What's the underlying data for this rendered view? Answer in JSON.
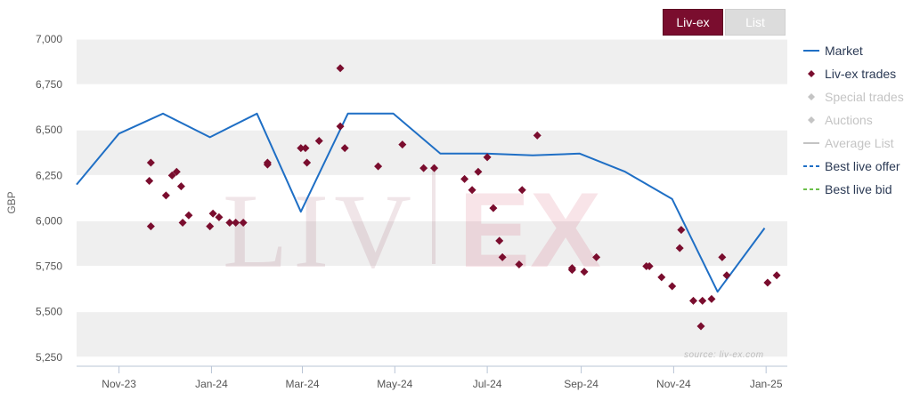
{
  "tabs": {
    "active": "Liv-ex",
    "inactive": "List"
  },
  "watermark": "LIV|EX",
  "source": "source: liv-ex.com",
  "colors": {
    "market": "#1f6fc5",
    "trades": "#7a0d2e",
    "inactive": "#c4c4c4",
    "best_offer": "#1f6fc5",
    "best_bid": "#6cc04a",
    "band": "#efefef"
  },
  "legend": [
    {
      "label": "Market",
      "symbol": "line",
      "color": "#1f6fc5",
      "active": true
    },
    {
      "label": "Liv-ex trades",
      "symbol": "diamond",
      "color": "#7a0d2e",
      "active": true
    },
    {
      "label": "Special trades",
      "symbol": "diamond",
      "color": "#c4c4c4",
      "active": false
    },
    {
      "label": "Auctions",
      "symbol": "diamond",
      "color": "#c4c4c4",
      "active": false
    },
    {
      "label": "Average List",
      "symbol": "line",
      "color": "#c4c4c4",
      "active": false
    },
    {
      "label": "Best live offer",
      "symbol": "dash",
      "color": "#1f6fc5",
      "active": true
    },
    {
      "label": "Best live bid",
      "symbol": "dash",
      "color": "#6cc04a",
      "active": true
    }
  ],
  "chart_data": {
    "type": "line",
    "ylabel": "GBP",
    "ylim": [
      5200,
      7000
    ],
    "yticks": [
      5250,
      5500,
      5750,
      6000,
      6250,
      6500,
      6750,
      7000
    ],
    "ytick_labels": [
      "5,250",
      "5,500",
      "5,750",
      "6,000",
      "6,250",
      "6,500",
      "6,750",
      "7,000"
    ],
    "xlim": [
      "2023-10-04",
      "2025-01-15"
    ],
    "xticks": [
      "2023-11-01",
      "2024-01-01",
      "2024-03-01",
      "2024-05-01",
      "2024-07-01",
      "2024-09-01",
      "2024-11-01",
      "2025-01-01"
    ],
    "xtick_labels": [
      "Nov-23",
      "Jan-24",
      "Mar-24",
      "May-24",
      "Jul-24",
      "Sep-24",
      "Nov-24",
      "Jan-25"
    ],
    "grid": true,
    "legend_position": "right",
    "series": [
      {
        "name": "Market",
        "type": "line",
        "points": [
          [
            "2023-10-04",
            6200
          ],
          [
            "2023-11-01",
            6480
          ],
          [
            "2023-11-30",
            6590
          ],
          [
            "2023-12-31",
            6460
          ],
          [
            "2024-01-31",
            6590
          ],
          [
            "2024-02-29",
            6050
          ],
          [
            "2024-03-31",
            6590
          ],
          [
            "2024-04-30",
            6590
          ],
          [
            "2024-05-31",
            6370
          ],
          [
            "2024-06-30",
            6370
          ],
          [
            "2024-07-31",
            6360
          ],
          [
            "2024-08-31",
            6370
          ],
          [
            "2024-09-30",
            6270
          ],
          [
            "2024-10-31",
            6120
          ],
          [
            "2024-11-30",
            5610
          ],
          [
            "2024-12-31",
            5960
          ]
        ]
      },
      {
        "name": "Liv-ex trades",
        "type": "scatter",
        "points": [
          [
            "2023-11-21",
            6220
          ],
          [
            "2023-11-22",
            6320
          ],
          [
            "2023-11-22",
            5970
          ],
          [
            "2023-12-02",
            6140
          ],
          [
            "2023-12-06",
            6250
          ],
          [
            "2023-12-09",
            6270
          ],
          [
            "2023-12-12",
            6190
          ],
          [
            "2023-12-13",
            5990
          ],
          [
            "2023-12-17",
            6030
          ],
          [
            "2023-12-31",
            5970
          ],
          [
            "2024-01-02",
            6040
          ],
          [
            "2024-01-06",
            6020
          ],
          [
            "2024-01-13",
            5990
          ],
          [
            "2024-01-17",
            5990
          ],
          [
            "2024-01-22",
            5990
          ],
          [
            "2024-02-07",
            6320
          ],
          [
            "2024-02-07",
            6310
          ],
          [
            "2024-02-29",
            6400
          ],
          [
            "2024-03-03",
            6400
          ],
          [
            "2024-03-04",
            6320
          ],
          [
            "2024-03-12",
            6440
          ],
          [
            "2024-03-26",
            6840
          ],
          [
            "2024-03-26",
            6520
          ],
          [
            "2024-03-29",
            6400
          ],
          [
            "2024-04-20",
            6300
          ],
          [
            "2024-05-06",
            6420
          ],
          [
            "2024-05-20",
            6290
          ],
          [
            "2024-05-27",
            6290
          ],
          [
            "2024-06-16",
            6230
          ],
          [
            "2024-06-21",
            6170
          ],
          [
            "2024-06-25",
            6270
          ],
          [
            "2024-07-01",
            6350
          ],
          [
            "2024-07-05",
            6070
          ],
          [
            "2024-07-09",
            5890
          ],
          [
            "2024-07-11",
            5800
          ],
          [
            "2024-07-22",
            5760
          ],
          [
            "2024-07-24",
            6170
          ],
          [
            "2024-08-03",
            6470
          ],
          [
            "2024-08-26",
            5730
          ],
          [
            "2024-08-26",
            5740
          ],
          [
            "2024-09-03",
            5720
          ],
          [
            "2024-09-11",
            5800
          ],
          [
            "2024-10-14",
            5750
          ],
          [
            "2024-10-16",
            5750
          ],
          [
            "2024-10-24",
            5690
          ],
          [
            "2024-10-31",
            5640
          ],
          [
            "2024-11-05",
            5850
          ],
          [
            "2024-11-06",
            5950
          ],
          [
            "2024-11-14",
            5560
          ],
          [
            "2024-11-19",
            5420
          ],
          [
            "2024-11-20",
            5560
          ],
          [
            "2024-11-26",
            5570
          ],
          [
            "2024-12-03",
            5800
          ],
          [
            "2024-12-06",
            5700
          ],
          [
            "2025-01-02",
            5660
          ],
          [
            "2025-01-08",
            5700
          ]
        ]
      }
    ]
  }
}
